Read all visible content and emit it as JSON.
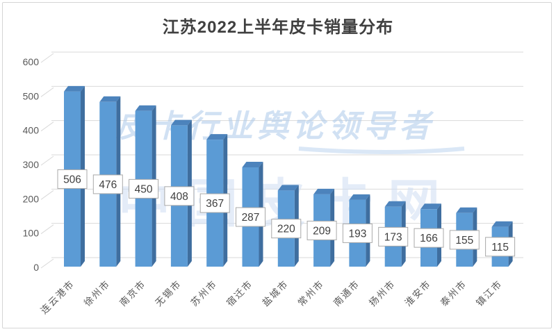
{
  "title": "江苏2022上半年皮卡销量分布",
  "watermarks": {
    "slogan": "皮卡行业舆论领导者",
    "brand": "中国皮卡网"
  },
  "y_axis": {
    "ticks": [
      "0",
      "100",
      "200",
      "300",
      "400",
      "500",
      "600"
    ]
  },
  "chart_data": {
    "type": "bar",
    "style": "3d-column",
    "title": "江苏2022上半年皮卡销量分布",
    "categories": [
      "连云港市",
      "徐州市",
      "南京市",
      "无锡市",
      "苏州市",
      "宿迁市",
      "盐城市",
      "常州市",
      "南通市",
      "扬州市",
      "淮安市",
      "泰州市",
      "镇江市"
    ],
    "values": [
      506,
      476,
      450,
      408,
      367,
      287,
      220,
      209,
      193,
      173,
      166,
      155,
      115
    ],
    "xlabel": "",
    "ylabel": "",
    "ylim": [
      0,
      600
    ],
    "ytick_interval": 100,
    "grid": true,
    "legend": false,
    "data_labels": true
  },
  "colors": {
    "bar_front": "#5B9BD5",
    "bar_side": "#3F6E9F",
    "bar_top": "#4C83BC",
    "gridline": "#D9D9D9",
    "axis_text": "#595959",
    "title_text": "#3F3F3F",
    "label_box_bg": "#FFFFFF",
    "label_box_border": "#A9A9A9",
    "label_text": "#3F3F3F",
    "watermark_slogan": "#ACC9EA",
    "watermark_brand": "#D2E0F4",
    "frame_border": "#D5D5D5"
  }
}
